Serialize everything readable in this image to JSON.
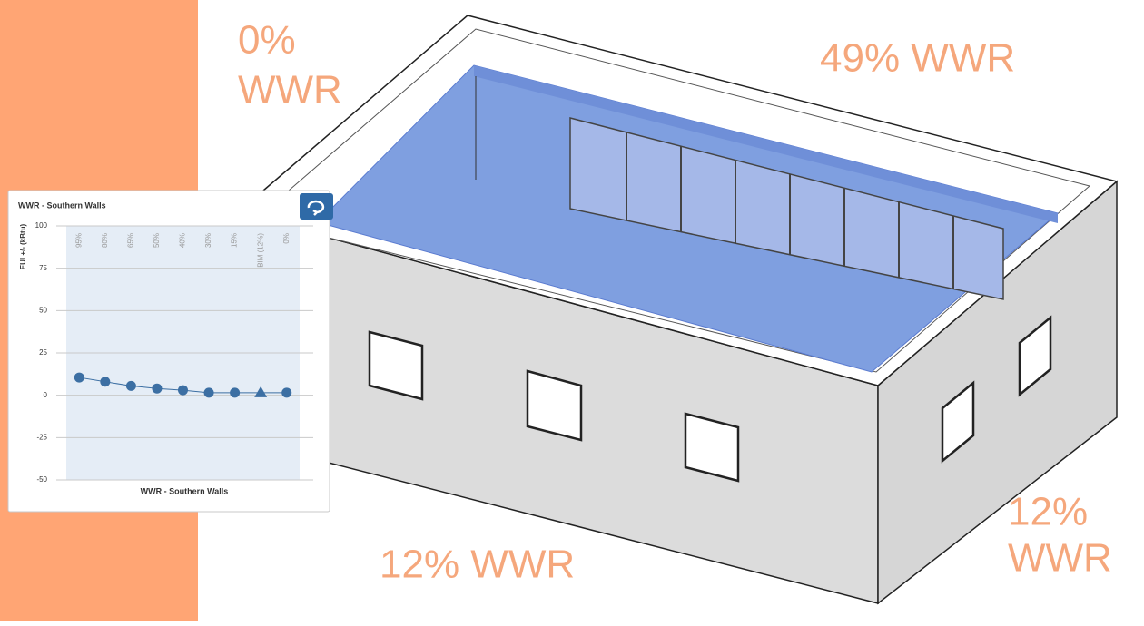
{
  "annotations": {
    "west": [
      "0%",
      "WWR"
    ],
    "north": "49% WWR",
    "south": "12% WWR",
    "east": [
      "12%",
      "WWR"
    ]
  },
  "chart_data": {
    "type": "line",
    "title": "WWR - Southern Walls",
    "y_label": "EUI +/- (kBtu)",
    "x_label": "WWR - Southern Walls",
    "categories": [
      "95%",
      "80%",
      "65%",
      "50%",
      "40%",
      "30%",
      "15%",
      "BIM (12%)",
      "0%"
    ],
    "values": [
      10.5,
      8,
      5.5,
      4,
      3,
      1.5,
      1.5,
      1.5,
      1.5
    ],
    "markers": [
      "circle",
      "circle",
      "circle",
      "circle",
      "circle",
      "circle",
      "circle",
      "triangle",
      "circle"
    ],
    "color": "#3c6fa3",
    "ylim": [
      -50,
      100
    ],
    "yticks": [
      -50,
      -25,
      0,
      25,
      50,
      75,
      100
    ],
    "grid": true
  }
}
